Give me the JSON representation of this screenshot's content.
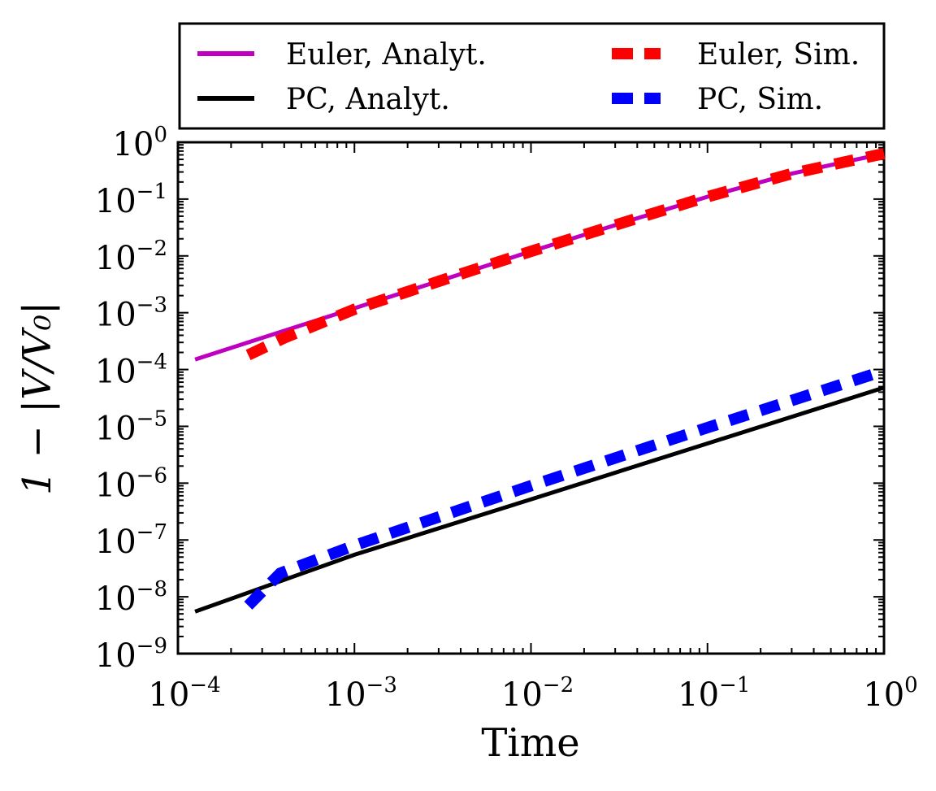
{
  "chart_data": {
    "type": "line",
    "xlabel": "Time",
    "ylabel": "1 − |V/V₀|",
    "x_scale": "log",
    "y_scale": "log",
    "xlim": [
      0.0001,
      1
    ],
    "ylim": [
      1e-09,
      1
    ],
    "grid": false,
    "legend_position": "top, outside plot",
    "x_tick_labels": [
      {
        "value": 0.0001,
        "base": "10",
        "exp": "−4"
      },
      {
        "value": 0.001,
        "base": "10",
        "exp": "−3"
      },
      {
        "value": 0.01,
        "base": "10",
        "exp": "−2"
      },
      {
        "value": 0.1,
        "base": "10",
        "exp": "−1"
      },
      {
        "value": 1,
        "base": "10",
        "exp": "0"
      }
    ],
    "y_tick_labels": [
      {
        "value": 1,
        "base": "10",
        "exp": "0"
      },
      {
        "value": 0.1,
        "base": "10",
        "exp": "−1"
      },
      {
        "value": 0.01,
        "base": "10",
        "exp": "−2"
      },
      {
        "value": 0.001,
        "base": "10",
        "exp": "−3"
      },
      {
        "value": 0.0001,
        "base": "10",
        "exp": "−4"
      },
      {
        "value": 1e-05,
        "base": "10",
        "exp": "−5"
      },
      {
        "value": 1e-06,
        "base": "10",
        "exp": "−6"
      },
      {
        "value": 1e-07,
        "base": "10",
        "exp": "−7"
      },
      {
        "value": 1e-08,
        "base": "10",
        "exp": "−8"
      },
      {
        "value": 1e-09,
        "base": "10",
        "exp": "−9"
      }
    ],
    "series": [
      {
        "name": "Euler, Analyt.",
        "color": "#bf00bf",
        "style": "solid",
        "x": [
          0.000125,
          0.0004,
          0.001,
          0.004,
          0.01,
          0.04,
          0.1,
          0.3,
          0.6,
          1.0
        ],
        "y": [
          0.00015,
          0.00048,
          0.0012,
          0.0048,
          0.012,
          0.046,
          0.11,
          0.28,
          0.45,
          0.63
        ]
      },
      {
        "name": "Euler, Sim.",
        "color": "#ff0000",
        "style": "dashed",
        "x": [
          0.00025,
          0.0004,
          0.001,
          0.004,
          0.01,
          0.04,
          0.1,
          0.3,
          0.6,
          1.0
        ],
        "y": [
          0.00018,
          0.00036,
          0.00115,
          0.0048,
          0.012,
          0.046,
          0.11,
          0.28,
          0.45,
          0.63
        ]
      },
      {
        "name": "PC, Analyt.",
        "color": "#000000",
        "style": "solid",
        "x": [
          0.000125,
          0.001,
          0.01,
          0.1,
          1.0
        ],
        "y": [
          5.5e-09,
          5.5e-08,
          5.2e-07,
          5e-06,
          4.8e-05
        ]
      },
      {
        "name": "PC, Sim.",
        "color": "#0000ff",
        "style": "dashed",
        "x": [
          0.00025,
          0.00038,
          0.001,
          0.01,
          0.1,
          1.0
        ],
        "y": [
          7e-09,
          2.6e-08,
          8e-08,
          9e-07,
          9.5e-06,
          9.5e-05
        ]
      }
    ],
    "legend": [
      {
        "series": 0,
        "label": "Euler, Analyt."
      },
      {
        "series": 1,
        "label": "Euler, Sim."
      },
      {
        "series": 2,
        "label": "PC, Analyt."
      },
      {
        "series": 3,
        "label": "PC, Sim."
      }
    ]
  }
}
